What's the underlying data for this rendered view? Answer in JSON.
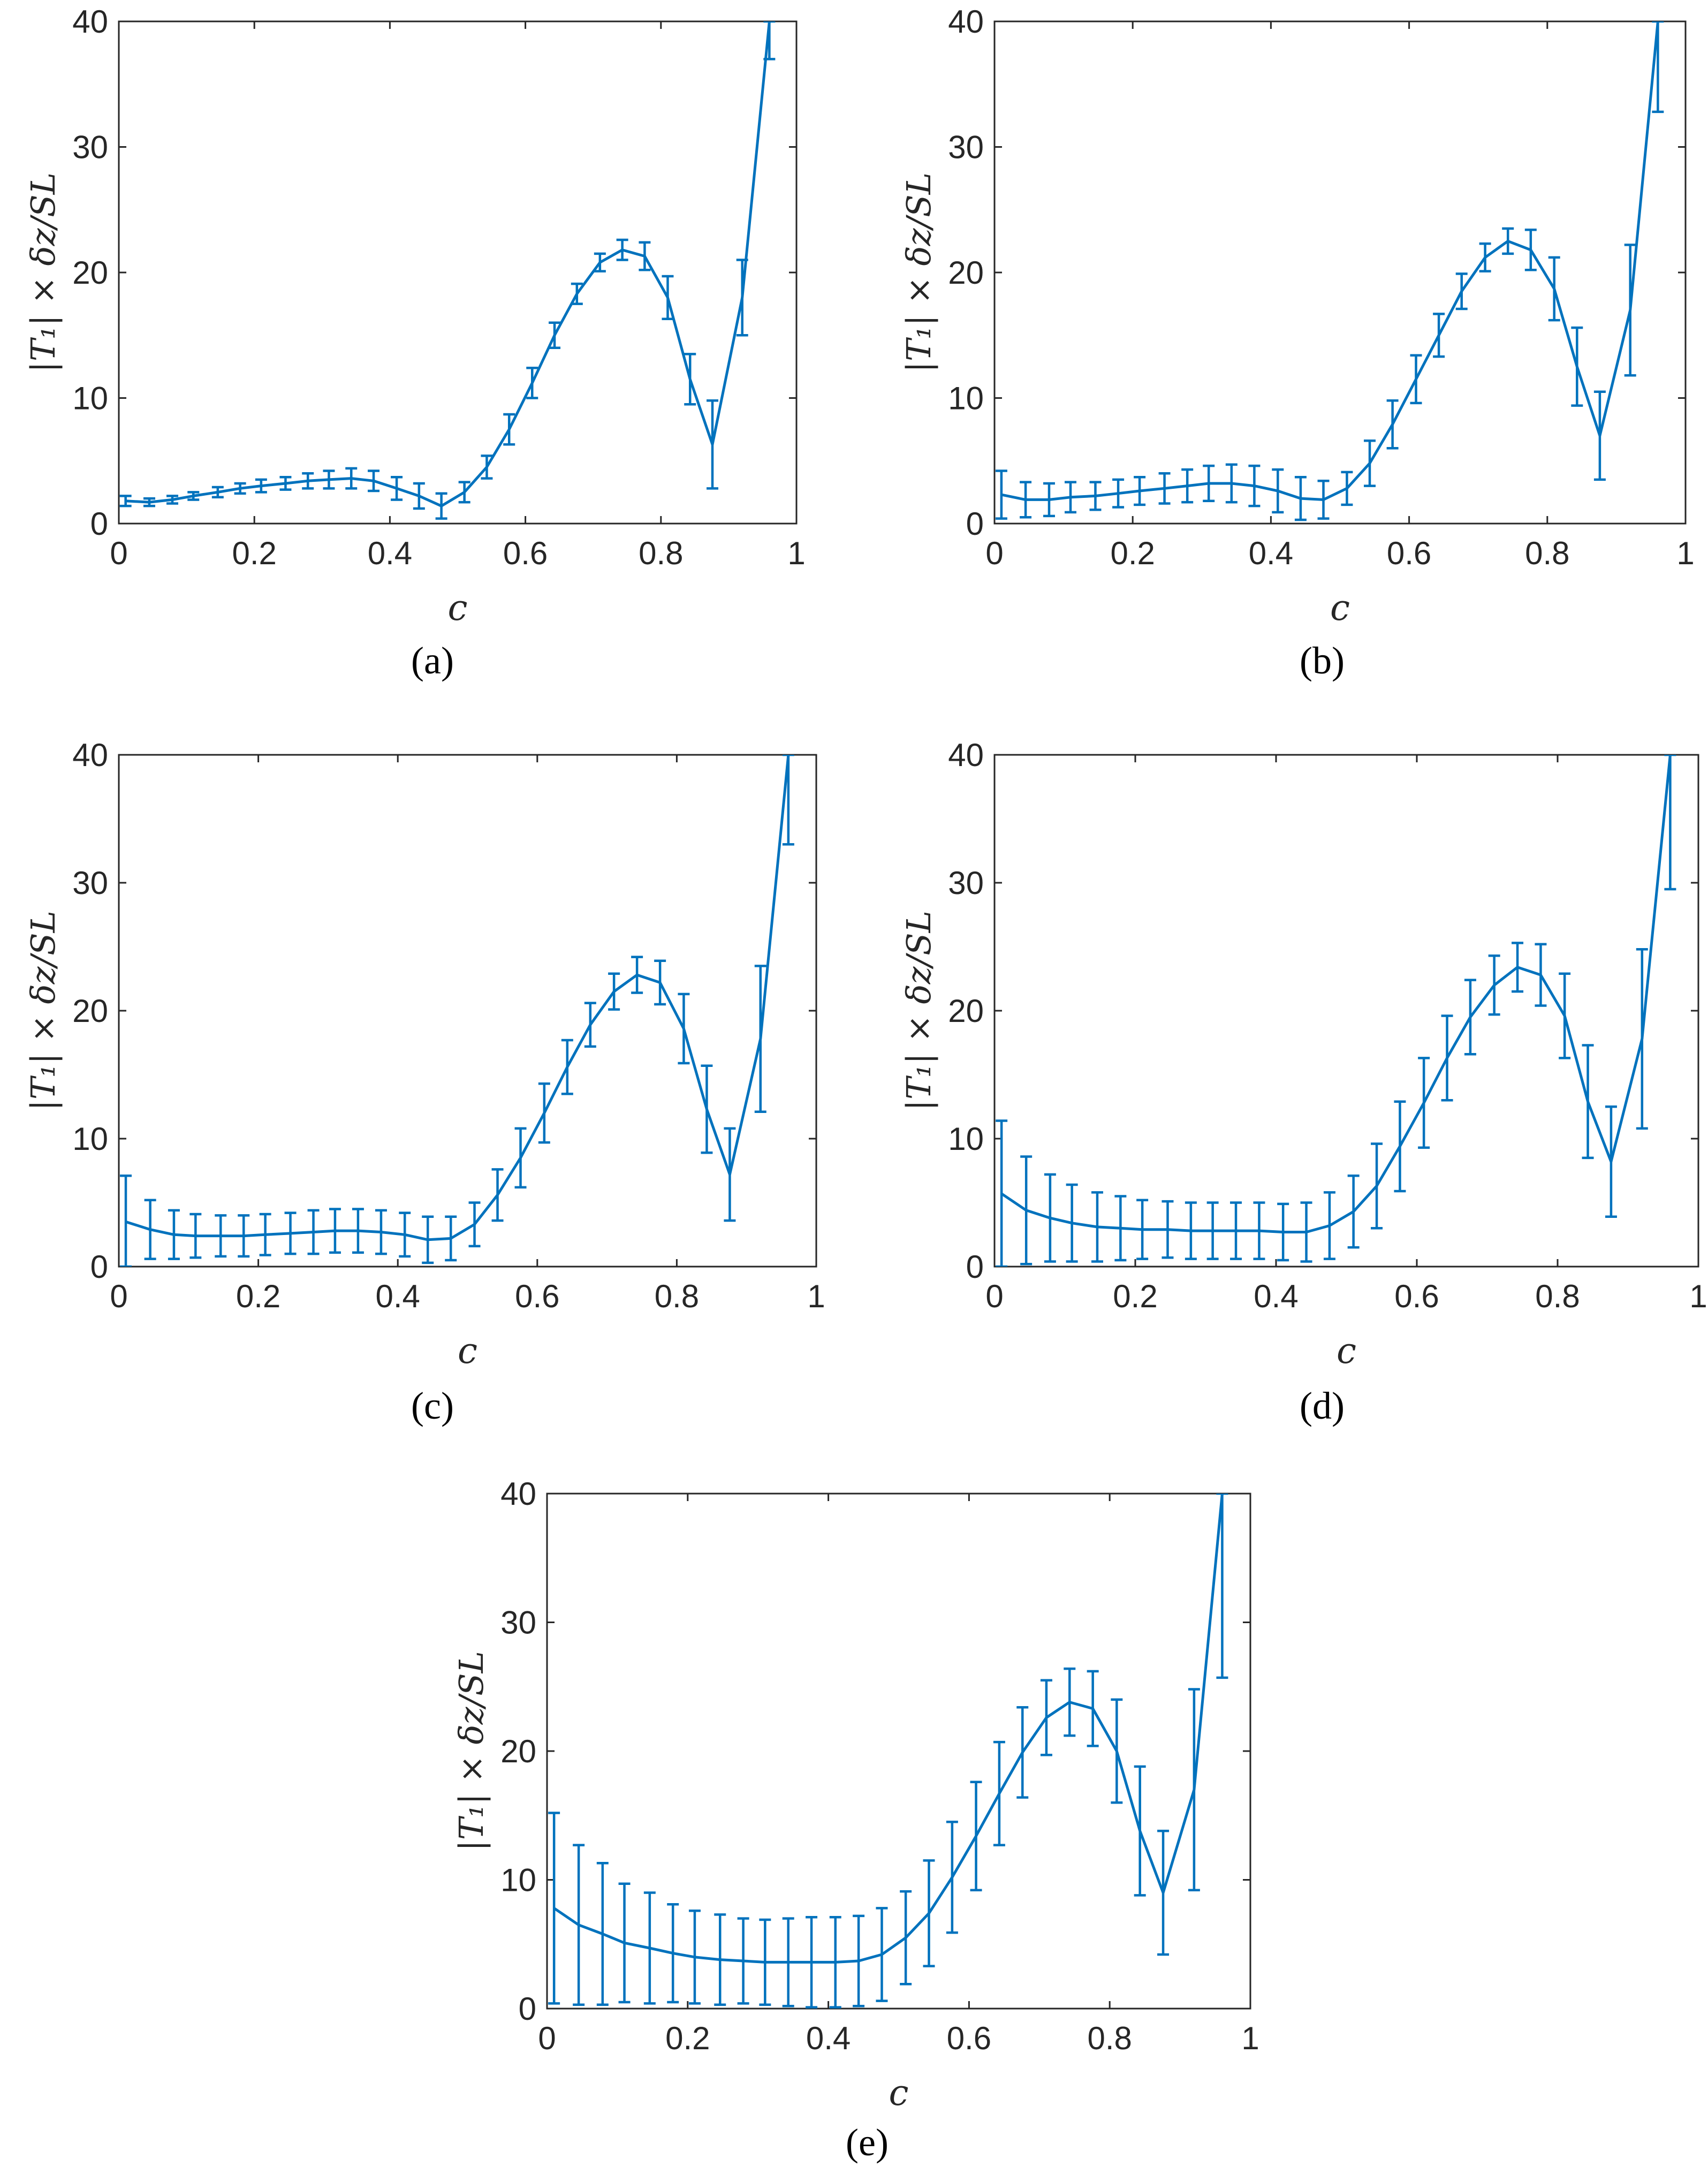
{
  "figure": {
    "colors": {
      "series": "#0072BD",
      "axis": "#262626"
    }
  },
  "chart_data": [
    {
      "type": "line",
      "panel_label": "(a)",
      "xlabel": "c",
      "ylabel": "|T₁| × δz/SL",
      "xlim": [
        0,
        1
      ],
      "ylim": [
        0,
        40
      ],
      "xticks": [
        "0",
        "0.2",
        "0.4",
        "0.6",
        "0.8",
        "1"
      ],
      "yticks": [
        "0",
        "10",
        "20",
        "30",
        "40"
      ],
      "grid": false,
      "series": [
        {
          "x": [
            0.01,
            0.045,
            0.079,
            0.11,
            0.146,
            0.179,
            0.21,
            0.246,
            0.279,
            0.31,
            0.343,
            0.376,
            0.41,
            0.443,
            0.476,
            0.51,
            0.543,
            0.576,
            0.61,
            0.643,
            0.676,
            0.71,
            0.743,
            0.776,
            0.81,
            0.843,
            0.876,
            0.92,
            0.96
          ],
          "y": [
            1.8,
            1.7,
            1.9,
            2.2,
            2.5,
            2.8,
            3.0,
            3.2,
            3.4,
            3.5,
            3.6,
            3.4,
            2.8,
            2.2,
            1.4,
            2.5,
            4.5,
            7.5,
            11.2,
            15.0,
            18.3,
            20.8,
            21.8,
            21.3,
            18.0,
            11.5,
            6.3,
            18.0,
            40.0
          ],
          "err": [
            0.4,
            0.3,
            0.3,
            0.3,
            0.4,
            0.4,
            0.5,
            0.5,
            0.6,
            0.7,
            0.8,
            0.8,
            0.9,
            1.0,
            1.0,
            0.8,
            0.9,
            1.2,
            1.2,
            1.0,
            0.8,
            0.7,
            0.8,
            1.1,
            1.7,
            2.0,
            3.5,
            3.0,
            3.0
          ]
        }
      ]
    },
    {
      "type": "line",
      "panel_label": "(b)",
      "xlabel": "c",
      "ylabel": "|T₁| × δz/SL",
      "xlim": [
        0,
        1
      ],
      "ylim": [
        0,
        40
      ],
      "xticks": [
        "0",
        "0.2",
        "0.4",
        "0.6",
        "0.8",
        "1"
      ],
      "yticks": [
        "0",
        "10",
        "20",
        "30",
        "40"
      ],
      "grid": false,
      "series": [
        {
          "x": [
            0.01,
            0.045,
            0.079,
            0.11,
            0.146,
            0.179,
            0.21,
            0.246,
            0.279,
            0.31,
            0.343,
            0.376,
            0.41,
            0.443,
            0.476,
            0.51,
            0.543,
            0.576,
            0.61,
            0.643,
            0.676,
            0.71,
            0.743,
            0.776,
            0.81,
            0.843,
            0.876,
            0.92,
            0.96
          ],
          "y": [
            2.3,
            1.9,
            1.9,
            2.1,
            2.2,
            2.4,
            2.6,
            2.8,
            3.0,
            3.2,
            3.2,
            3.0,
            2.6,
            2.0,
            1.9,
            2.8,
            4.8,
            7.9,
            11.5,
            15.0,
            18.5,
            21.2,
            22.5,
            21.8,
            18.7,
            12.5,
            7.0,
            17.0,
            40.0
          ],
          "err": [
            1.9,
            1.4,
            1.3,
            1.2,
            1.1,
            1.1,
            1.1,
            1.2,
            1.3,
            1.4,
            1.5,
            1.6,
            1.7,
            1.7,
            1.5,
            1.3,
            1.8,
            1.9,
            1.9,
            1.7,
            1.4,
            1.1,
            1.0,
            1.6,
            2.5,
            3.1,
            3.5,
            5.2,
            7.2
          ]
        }
      ]
    },
    {
      "type": "line",
      "panel_label": "(c)",
      "xlabel": "c",
      "ylabel": "|T₁| × δz/SL",
      "xlim": [
        0,
        1
      ],
      "ylim": [
        0,
        40
      ],
      "xticks": [
        "0",
        "0.2",
        "0.4",
        "0.6",
        "0.8",
        "1"
      ],
      "yticks": [
        "0",
        "10",
        "20",
        "30",
        "40"
      ],
      "grid": false,
      "series": [
        {
          "x": [
            0.01,
            0.045,
            0.079,
            0.11,
            0.146,
            0.179,
            0.21,
            0.246,
            0.279,
            0.31,
            0.343,
            0.376,
            0.41,
            0.443,
            0.476,
            0.51,
            0.543,
            0.576,
            0.61,
            0.643,
            0.676,
            0.71,
            0.743,
            0.776,
            0.81,
            0.843,
            0.876,
            0.92,
            0.96
          ],
          "y": [
            3.5,
            2.9,
            2.5,
            2.4,
            2.4,
            2.4,
            2.5,
            2.6,
            2.7,
            2.8,
            2.8,
            2.7,
            2.5,
            2.1,
            2.2,
            3.3,
            5.6,
            8.5,
            12.0,
            15.6,
            18.9,
            21.5,
            22.8,
            22.2,
            18.6,
            12.3,
            7.2,
            17.8,
            40.0
          ],
          "err": [
            3.6,
            2.3,
            1.9,
            1.7,
            1.6,
            1.6,
            1.6,
            1.6,
            1.7,
            1.7,
            1.7,
            1.7,
            1.7,
            1.8,
            1.7,
            1.7,
            2.0,
            2.3,
            2.3,
            2.1,
            1.7,
            1.4,
            1.4,
            1.7,
            2.7,
            3.4,
            3.6,
            5.7,
            7.0
          ]
        }
      ]
    },
    {
      "type": "line",
      "panel_label": "(d)",
      "xlabel": "c",
      "ylabel": "|T₁| × δz/SL",
      "xlim": [
        0,
        1
      ],
      "ylim": [
        0,
        40
      ],
      "xticks": [
        "0",
        "0.2",
        "0.4",
        "0.6",
        "0.8",
        "1"
      ],
      "yticks": [
        "0",
        "10",
        "20",
        "30",
        "40"
      ],
      "grid": false,
      "series": [
        {
          "x": [
            0.01,
            0.045,
            0.079,
            0.11,
            0.146,
            0.179,
            0.21,
            0.246,
            0.279,
            0.31,
            0.343,
            0.376,
            0.41,
            0.443,
            0.476,
            0.51,
            0.543,
            0.576,
            0.61,
            0.643,
            0.676,
            0.71,
            0.743,
            0.776,
            0.81,
            0.843,
            0.876,
            0.92,
            0.96
          ],
          "y": [
            5.7,
            4.4,
            3.8,
            3.4,
            3.1,
            3.0,
            2.9,
            2.9,
            2.8,
            2.8,
            2.8,
            2.8,
            2.7,
            2.7,
            3.2,
            4.3,
            6.3,
            9.4,
            12.8,
            16.3,
            19.5,
            22.0,
            23.4,
            22.8,
            19.6,
            12.9,
            8.2,
            17.8,
            40.0
          ],
          "err": [
            5.7,
            4.2,
            3.4,
            3.0,
            2.7,
            2.5,
            2.3,
            2.2,
            2.2,
            2.2,
            2.2,
            2.2,
            2.2,
            2.3,
            2.6,
            2.8,
            3.3,
            3.5,
            3.5,
            3.3,
            2.9,
            2.3,
            1.9,
            2.4,
            3.3,
            4.4,
            4.3,
            7.0,
            10.5
          ]
        }
      ]
    },
    {
      "type": "line",
      "panel_label": "(e)",
      "xlabel": "c",
      "ylabel": "|T₁| × δz/SL",
      "xlim": [
        0,
        1
      ],
      "ylim": [
        0,
        40
      ],
      "xticks": [
        "0",
        "0.2",
        "0.4",
        "0.6",
        "0.8",
        "1"
      ],
      "yticks": [
        "0",
        "10",
        "20",
        "30",
        "40"
      ],
      "grid": false,
      "series": [
        {
          "x": [
            0.01,
            0.045,
            0.079,
            0.11,
            0.146,
            0.179,
            0.21,
            0.246,
            0.279,
            0.31,
            0.343,
            0.376,
            0.41,
            0.443,
            0.476,
            0.51,
            0.543,
            0.576,
            0.61,
            0.643,
            0.676,
            0.71,
            0.743,
            0.776,
            0.81,
            0.843,
            0.876,
            0.92,
            0.96
          ],
          "y": [
            7.8,
            6.5,
            5.8,
            5.1,
            4.7,
            4.3,
            4.0,
            3.8,
            3.7,
            3.6,
            3.6,
            3.6,
            3.6,
            3.7,
            4.2,
            5.5,
            7.4,
            10.2,
            13.4,
            16.7,
            19.9,
            22.6,
            23.8,
            23.3,
            20.0,
            13.8,
            9.0,
            17.0,
            40.0
          ],
          "err": [
            7.4,
            6.2,
            5.5,
            4.6,
            4.3,
            3.8,
            3.6,
            3.5,
            3.3,
            3.3,
            3.4,
            3.5,
            3.5,
            3.5,
            3.6,
            3.6,
            4.1,
            4.3,
            4.2,
            4.0,
            3.5,
            2.9,
            2.6,
            2.9,
            4.0,
            5.0,
            4.8,
            7.8,
            14.3
          ]
        }
      ]
    }
  ]
}
